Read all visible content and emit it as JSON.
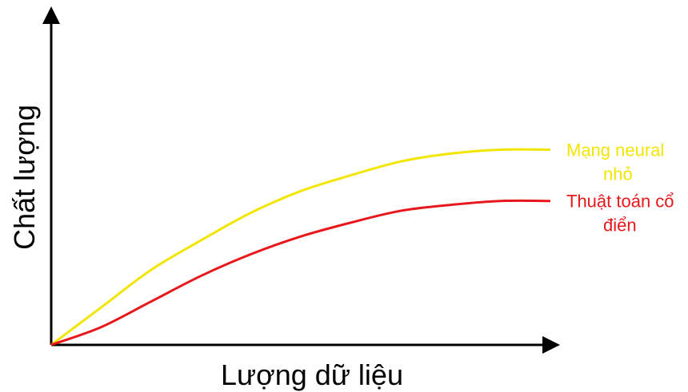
{
  "chart_data": {
    "type": "line",
    "xlabel": "Lượng dữ liệu",
    "ylabel": "Chất lượng",
    "xlim": [
      0,
      100
    ],
    "ylim": [
      0,
      100
    ],
    "grid": false,
    "axis_ticks": false,
    "series": [
      {
        "name": "Mạng neural nhỏ",
        "label_lines": [
          "Mạng neural",
          "nhỏ"
        ],
        "color": "#f2e600",
        "x": [
          0,
          10,
          20,
          30,
          40,
          50,
          60,
          70,
          80,
          90,
          100
        ],
        "y": [
          0,
          19,
          38,
          53,
          67,
          78,
          86,
          93,
          97,
          99,
          99
        ]
      },
      {
        "name": "Thuật toán cổ điển",
        "label_lines": [
          "Thuật toán cổ",
          "điển"
        ],
        "color": "#e8171b",
        "x": [
          0,
          10,
          20,
          30,
          40,
          50,
          60,
          70,
          80,
          90,
          100
        ],
        "y": [
          0,
          9,
          22,
          35,
          46,
          55,
          62,
          68,
          71,
          73,
          73
        ]
      }
    ]
  }
}
